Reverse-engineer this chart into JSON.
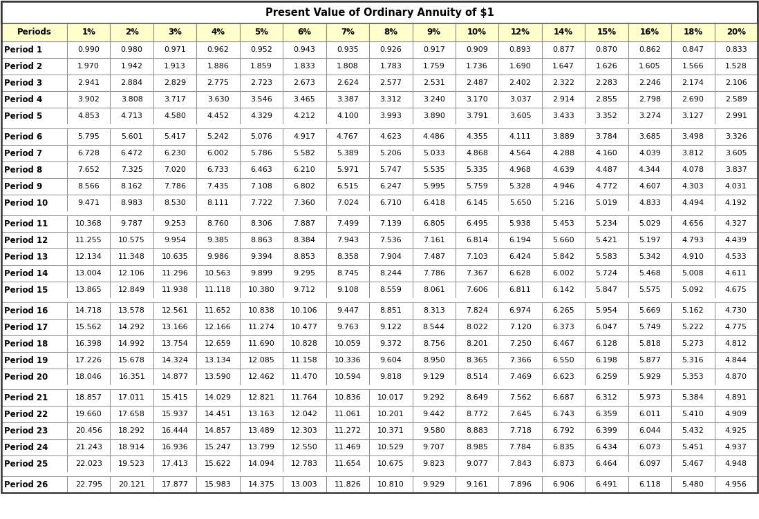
{
  "title": "Present Value of Ordinary Annuity of $1",
  "headers": [
    "Periods",
    "1%",
    "2%",
    "3%",
    "4%",
    "5%",
    "6%",
    "7%",
    "8%",
    "9%",
    "10%",
    "12%",
    "14%",
    "15%",
    "16%",
    "18%",
    "20%"
  ],
  "rows": [
    [
      "Period 1",
      "0.990",
      "0.980",
      "0.971",
      "0.962",
      "0.952",
      "0.943",
      "0.935",
      "0.926",
      "0.917",
      "0.909",
      "0.893",
      "0.877",
      "0.870",
      "0.862",
      "0.847",
      "0.833"
    ],
    [
      "Period 2",
      "1.970",
      "1.942",
      "1.913",
      "1.886",
      "1.859",
      "1.833",
      "1.808",
      "1.783",
      "1.759",
      "1.736",
      "1.690",
      "1.647",
      "1.626",
      "1.605",
      "1.566",
      "1.528"
    ],
    [
      "Period 3",
      "2.941",
      "2.884",
      "2.829",
      "2.775",
      "2.723",
      "2.673",
      "2.624",
      "2.577",
      "2.531",
      "2.487",
      "2.402",
      "2.322",
      "2.283",
      "2.246",
      "2.174",
      "2.106"
    ],
    [
      "Period 4",
      "3.902",
      "3.808",
      "3.717",
      "3.630",
      "3.546",
      "3.465",
      "3.387",
      "3.312",
      "3.240",
      "3.170",
      "3.037",
      "2.914",
      "2.855",
      "2.798",
      "2.690",
      "2.589"
    ],
    [
      "Period 5",
      "4.853",
      "4.713",
      "4.580",
      "4.452",
      "4.329",
      "4.212",
      "4.100",
      "3.993",
      "3.890",
      "3.791",
      "3.605",
      "3.433",
      "3.352",
      "3.274",
      "3.127",
      "2.991"
    ],
    [
      "Period 6",
      "5.795",
      "5.601",
      "5.417",
      "5.242",
      "5.076",
      "4.917",
      "4.767",
      "4.623",
      "4.486",
      "4.355",
      "4.111",
      "3.889",
      "3.784",
      "3.685",
      "3.498",
      "3.326"
    ],
    [
      "Period 7",
      "6.728",
      "6.472",
      "6.230",
      "6.002",
      "5.786",
      "5.582",
      "5.389",
      "5.206",
      "5.033",
      "4.868",
      "4.564",
      "4.288",
      "4.160",
      "4.039",
      "3.812",
      "3.605"
    ],
    [
      "Period 8",
      "7.652",
      "7.325",
      "7.020",
      "6.733",
      "6.463",
      "6.210",
      "5.971",
      "5.747",
      "5.535",
      "5.335",
      "4.968",
      "4.639",
      "4.487",
      "4.344",
      "4.078",
      "3.837"
    ],
    [
      "Period 9",
      "8.566",
      "8.162",
      "7.786",
      "7.435",
      "7.108",
      "6.802",
      "6.515",
      "6.247",
      "5.995",
      "5.759",
      "5.328",
      "4.946",
      "4.772",
      "4.607",
      "4.303",
      "4.031"
    ],
    [
      "Period 10",
      "9.471",
      "8.983",
      "8.530",
      "8.111",
      "7.722",
      "7.360",
      "7.024",
      "6.710",
      "6.418",
      "6.145",
      "5.650",
      "5.216",
      "5.019",
      "4.833",
      "4.494",
      "4.192"
    ],
    [
      "Period 11",
      "10.368",
      "9.787",
      "9.253",
      "8.760",
      "8.306",
      "7.887",
      "7.499",
      "7.139",
      "6.805",
      "6.495",
      "5.938",
      "5.453",
      "5.234",
      "5.029",
      "4.656",
      "4.327"
    ],
    [
      "Period 12",
      "11.255",
      "10.575",
      "9.954",
      "9.385",
      "8.863",
      "8.384",
      "7.943",
      "7.536",
      "7.161",
      "6.814",
      "6.194",
      "5.660",
      "5.421",
      "5.197",
      "4.793",
      "4.439"
    ],
    [
      "Period 13",
      "12.134",
      "11.348",
      "10.635",
      "9.986",
      "9.394",
      "8.853",
      "8.358",
      "7.904",
      "7.487",
      "7.103",
      "6.424",
      "5.842",
      "5.583",
      "5.342",
      "4.910",
      "4.533"
    ],
    [
      "Period 14",
      "13.004",
      "12.106",
      "11.296",
      "10.563",
      "9.899",
      "9.295",
      "8.745",
      "8.244",
      "7.786",
      "7.367",
      "6.628",
      "6.002",
      "5.724",
      "5.468",
      "5.008",
      "4.611"
    ],
    [
      "Period 15",
      "13.865",
      "12.849",
      "11.938",
      "11.118",
      "10.380",
      "9.712",
      "9.108",
      "8.559",
      "8.061",
      "7.606",
      "6.811",
      "6.142",
      "5.847",
      "5.575",
      "5.092",
      "4.675"
    ],
    [
      "Period 16",
      "14.718",
      "13.578",
      "12.561",
      "11.652",
      "10.838",
      "10.106",
      "9.447",
      "8.851",
      "8.313",
      "7.824",
      "6.974",
      "6.265",
      "5.954",
      "5.669",
      "5.162",
      "4.730"
    ],
    [
      "Period 17",
      "15.562",
      "14.292",
      "13.166",
      "12.166",
      "11.274",
      "10.477",
      "9.763",
      "9.122",
      "8.544",
      "8.022",
      "7.120",
      "6.373",
      "6.047",
      "5.749",
      "5.222",
      "4.775"
    ],
    [
      "Period 18",
      "16.398",
      "14.992",
      "13.754",
      "12.659",
      "11.690",
      "10.828",
      "10.059",
      "9.372",
      "8.756",
      "8.201",
      "7.250",
      "6.467",
      "6.128",
      "5.818",
      "5.273",
      "4.812"
    ],
    [
      "Period 19",
      "17.226",
      "15.678",
      "14.324",
      "13.134",
      "12.085",
      "11.158",
      "10.336",
      "9.604",
      "8.950",
      "8.365",
      "7.366",
      "6.550",
      "6.198",
      "5.877",
      "5.316",
      "4.844"
    ],
    [
      "Period 20",
      "18.046",
      "16.351",
      "14.877",
      "13.590",
      "12.462",
      "11.470",
      "10.594",
      "9.818",
      "9.129",
      "8.514",
      "7.469",
      "6.623",
      "6.259",
      "5.929",
      "5.353",
      "4.870"
    ],
    [
      "Period 21",
      "18.857",
      "17.011",
      "15.415",
      "14.029",
      "12.821",
      "11.764",
      "10.836",
      "10.017",
      "9.292",
      "8.649",
      "7.562",
      "6.687",
      "6.312",
      "5.973",
      "5.384",
      "4.891"
    ],
    [
      "Period 22",
      "19.660",
      "17.658",
      "15.937",
      "14.451",
      "13.163",
      "12.042",
      "11.061",
      "10.201",
      "9.442",
      "8.772",
      "7.645",
      "6.743",
      "6.359",
      "6.011",
      "5.410",
      "4.909"
    ],
    [
      "Period 23",
      "20.456",
      "18.292",
      "16.444",
      "14.857",
      "13.489",
      "12.303",
      "11.272",
      "10.371",
      "9.580",
      "8.883",
      "7.718",
      "6.792",
      "6.399",
      "6.044",
      "5.432",
      "4.925"
    ],
    [
      "Period 24",
      "21.243",
      "18.914",
      "16.936",
      "15.247",
      "13.799",
      "12.550",
      "11.469",
      "10.529",
      "9.707",
      "8.985",
      "7.784",
      "6.835",
      "6.434",
      "6.073",
      "5.451",
      "4.937"
    ],
    [
      "Period 25",
      "22.023",
      "19.523",
      "17.413",
      "15.622",
      "14.094",
      "12.783",
      "11.654",
      "10.675",
      "9.823",
      "9.077",
      "7.843",
      "6.873",
      "6.464",
      "6.097",
      "5.467",
      "4.948"
    ],
    [
      "Period 26",
      "22.795",
      "20.121",
      "17.877",
      "15.983",
      "14.375",
      "13.003",
      "11.826",
      "10.810",
      "9.929",
      "9.161",
      "7.896",
      "6.906",
      "6.491",
      "6.118",
      "5.480",
      "4.956"
    ]
  ],
  "group_breaks": [
    5,
    10,
    15,
    20,
    25
  ],
  "header_bg": "#FFFFCC",
  "border_color": "#888888",
  "title_fontsize": 10.5,
  "header_fontsize": 8.5,
  "cell_fontsize": 8.0,
  "col0_fontsize": 8.5
}
